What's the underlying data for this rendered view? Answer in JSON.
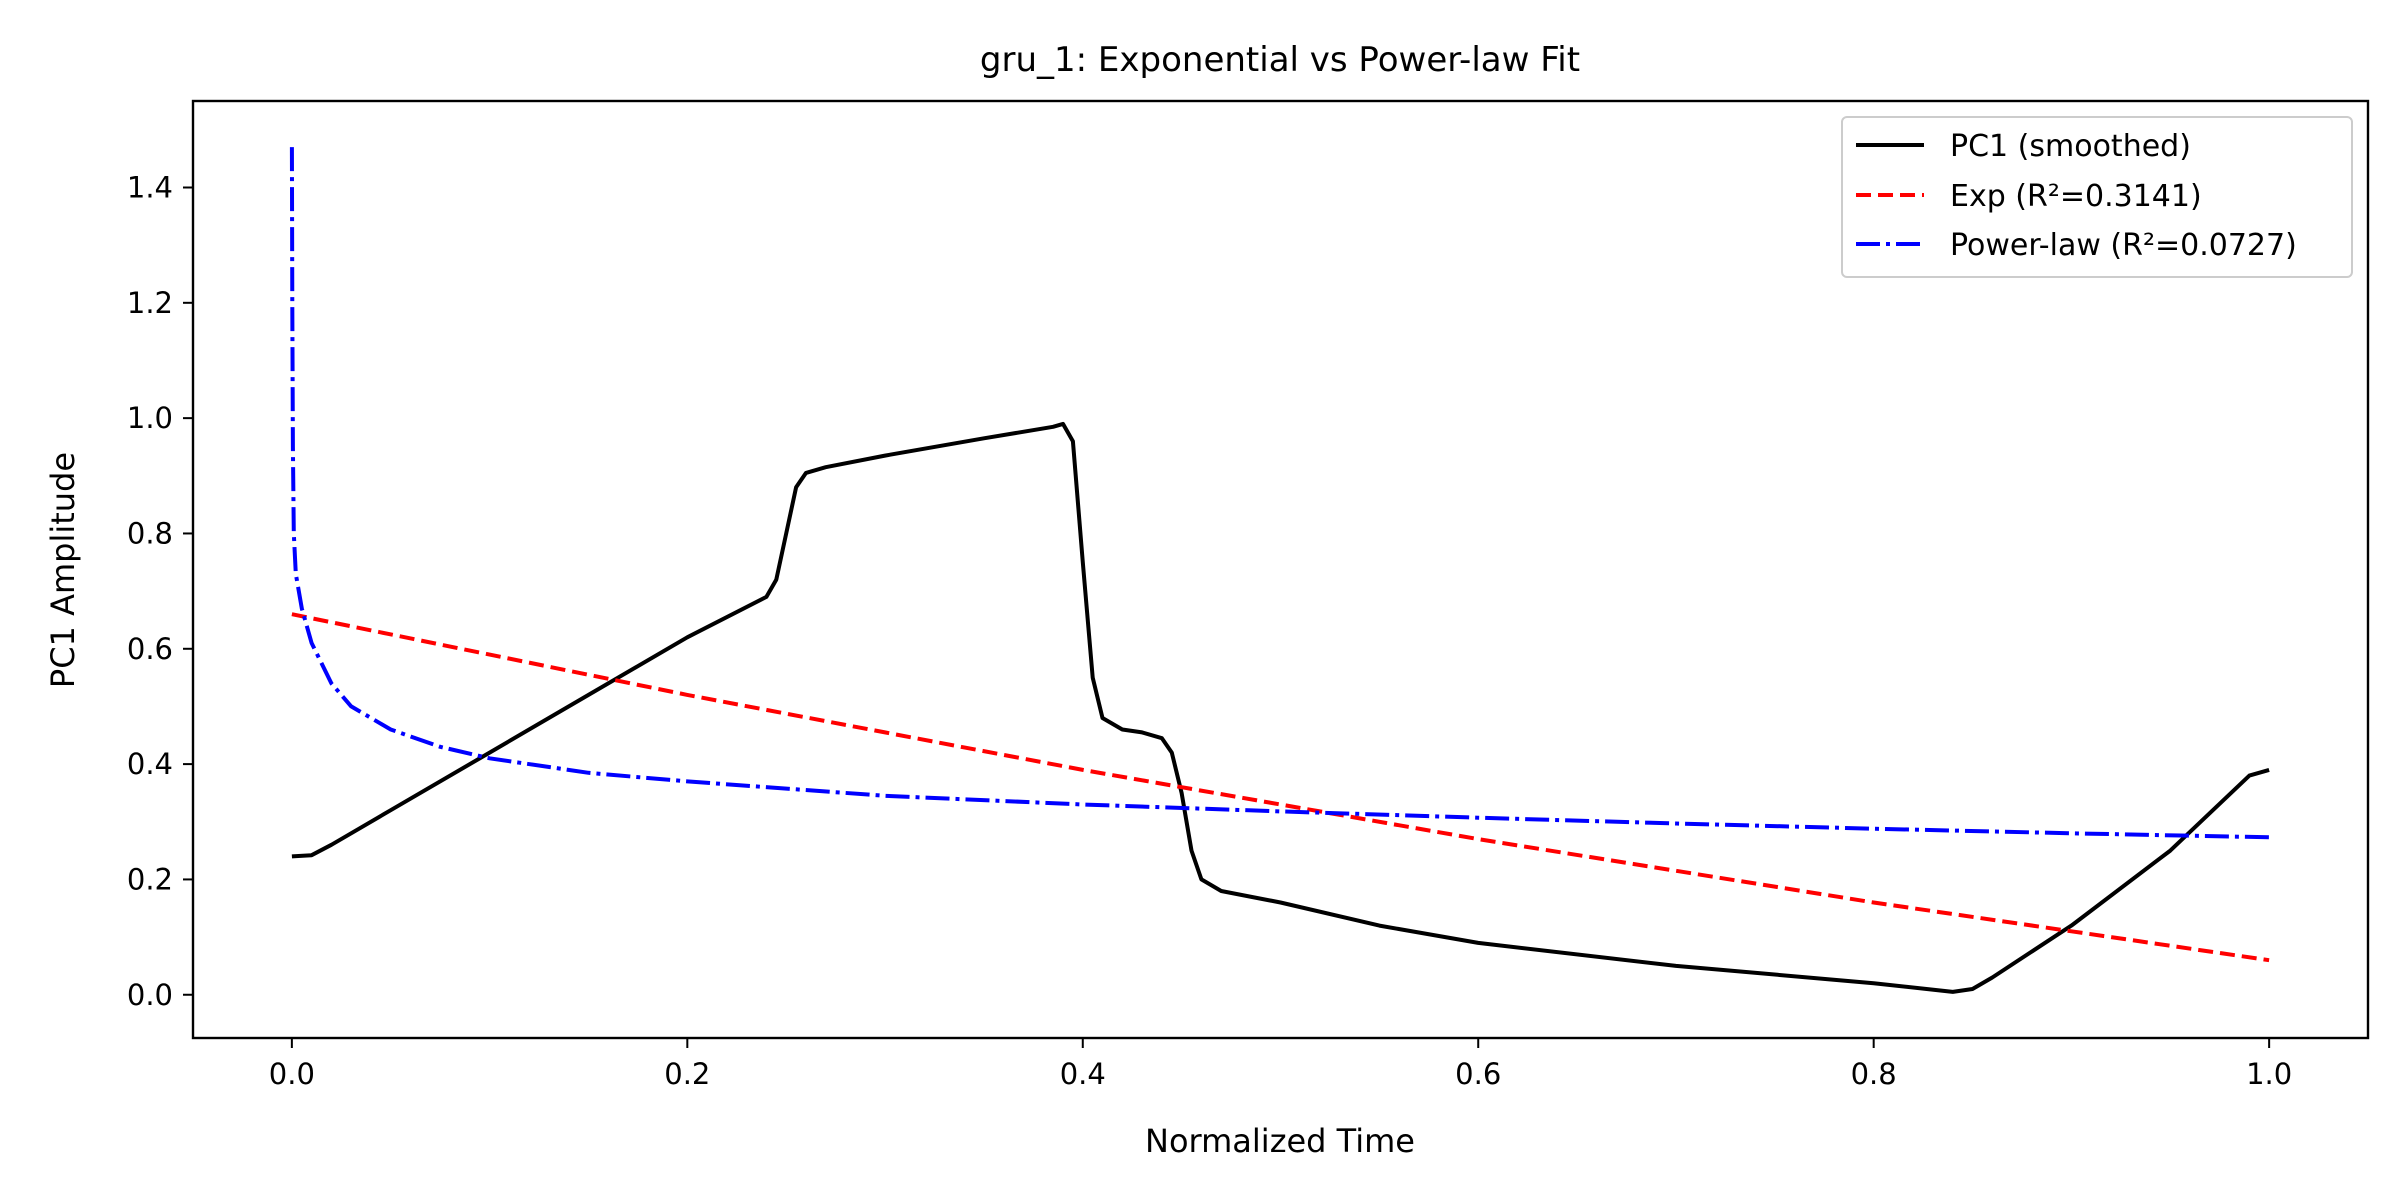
{
  "chart_data": {
    "type": "line",
    "title": "gru_1: Exponential vs Power-law Fit",
    "xlabel": "Normalized Time",
    "ylabel": "PC1 Amplitude",
    "xlim": [
      -0.05,
      1.05
    ],
    "ylim": [
      -0.075,
      1.55
    ],
    "xticks": [
      0.0,
      0.2,
      0.4,
      0.6,
      0.8,
      1.0
    ],
    "xtick_labels": [
      "0.0",
      "0.2",
      "0.4",
      "0.6",
      "0.8",
      "1.0"
    ],
    "yticks": [
      0.0,
      0.2,
      0.4,
      0.6,
      0.8,
      1.0,
      1.2,
      1.4
    ],
    "ytick_labels": [
      "0.0",
      "0.2",
      "0.4",
      "0.6",
      "0.8",
      "1.0",
      "1.2",
      "1.4"
    ],
    "grid": false,
    "legend_position": "top-right",
    "series": [
      {
        "name": "PC1 (smoothed)",
        "style": "solid",
        "color": "#000000",
        "x": [
          0.0,
          0.01,
          0.02,
          0.05,
          0.1,
          0.15,
          0.2,
          0.24,
          0.245,
          0.25,
          0.255,
          0.26,
          0.27,
          0.3,
          0.35,
          0.385,
          0.39,
          0.395,
          0.4,
          0.405,
          0.41,
          0.42,
          0.43,
          0.44,
          0.445,
          0.45,
          0.455,
          0.46,
          0.47,
          0.5,
          0.55,
          0.6,
          0.7,
          0.8,
          0.84,
          0.85,
          0.86,
          0.9,
          0.95,
          0.99,
          1.0
        ],
        "values": [
          0.24,
          0.242,
          0.26,
          0.32,
          0.42,
          0.52,
          0.62,
          0.69,
          0.72,
          0.8,
          0.88,
          0.905,
          0.915,
          0.935,
          0.965,
          0.985,
          0.99,
          0.96,
          0.75,
          0.55,
          0.48,
          0.46,
          0.455,
          0.445,
          0.42,
          0.35,
          0.25,
          0.2,
          0.18,
          0.16,
          0.12,
          0.09,
          0.05,
          0.02,
          0.005,
          0.01,
          0.03,
          0.12,
          0.25,
          0.38,
          0.39
        ]
      },
      {
        "name": "Exp (R²=0.3141)",
        "style": "dashed",
        "color": "#ff0000",
        "x": [
          0.0,
          0.1,
          0.2,
          0.3,
          0.4,
          0.5,
          0.6,
          0.7,
          0.8,
          0.9,
          1.0
        ],
        "values": [
          0.66,
          0.59,
          0.52,
          0.455,
          0.39,
          0.33,
          0.27,
          0.215,
          0.16,
          0.11,
          0.06
        ]
      },
      {
        "name": "Power-law (R²=0.0727)",
        "style": "dashdot",
        "color": "#0000ff",
        "x": [
          0.0,
          0.0002,
          0.0005,
          0.001,
          0.002,
          0.005,
          0.01,
          0.02,
          0.03,
          0.05,
          0.075,
          0.1,
          0.15,
          0.2,
          0.3,
          0.4,
          0.5,
          0.6,
          0.7,
          0.8,
          0.9,
          1.0
        ],
        "values": [
          1.47,
          1.2,
          0.95,
          0.8,
          0.73,
          0.67,
          0.61,
          0.54,
          0.5,
          0.46,
          0.43,
          0.41,
          0.385,
          0.37,
          0.345,
          0.33,
          0.318,
          0.307,
          0.297,
          0.288,
          0.28,
          0.273
        ]
      }
    ]
  }
}
